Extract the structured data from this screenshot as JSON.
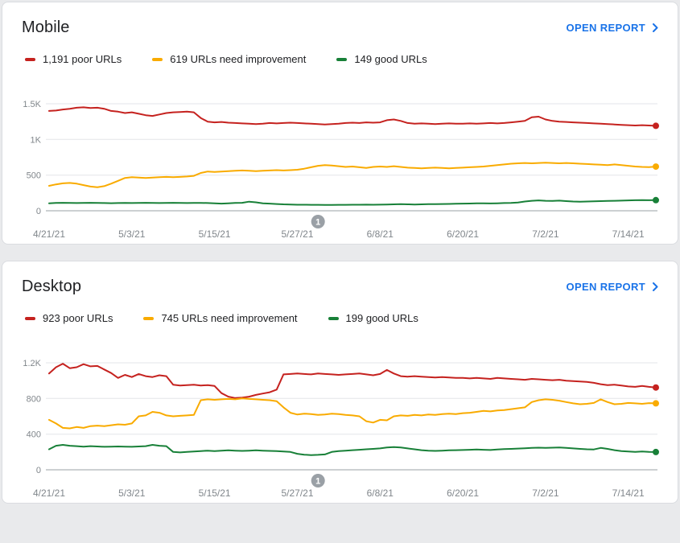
{
  "colors": {
    "accent": "#1a73e8",
    "axis_text": "#80868b",
    "gridline": "#e3e5e8",
    "baseline": "#9aa0a6",
    "annotation": "#9aa0a6",
    "poor": "#c5221f",
    "need_improvement": "#f9ab00",
    "good": "#188038"
  },
  "cards": [
    {
      "title": "Mobile",
      "open_report_label": "OPEN REPORT",
      "legend": [
        {
          "key": "poor",
          "label": "1,191 poor URLs",
          "color": "#c5221f"
        },
        {
          "key": "need-improvement",
          "label": "619 URLs need improvement",
          "color": "#f9ab00"
        },
        {
          "key": "good",
          "label": "149 good URLs",
          "color": "#188038"
        }
      ]
    },
    {
      "title": "Desktop",
      "open_report_label": "OPEN REPORT",
      "legend": [
        {
          "key": "poor",
          "label": "923 poor URLs",
          "color": "#c5221f"
        },
        {
          "key": "need-improvement",
          "label": "745 URLs need improvement",
          "color": "#f9ab00"
        },
        {
          "key": "good",
          "label": "199 good URLs",
          "color": "#188038"
        }
      ]
    }
  ],
  "chart_data": [
    {
      "type": "line",
      "title": "Mobile",
      "legend_position": "top",
      "grid": true,
      "x_tick_labels": [
        "4/21/21",
        "5/3/21",
        "5/15/21",
        "5/27/21",
        "6/8/21",
        "6/20/21",
        "7/2/21",
        "7/14/21"
      ],
      "x_tick_days": [
        0,
        12,
        24,
        36,
        48,
        60,
        72,
        84
      ],
      "x_range": [
        0,
        88
      ],
      "y_ticks": [
        0,
        500,
        1000,
        1500
      ],
      "y_tick_labels": [
        "0",
        "500",
        "1K",
        "1.5K"
      ],
      "ylim": [
        0,
        1600
      ],
      "annotation": {
        "label": "1",
        "x_day": 39
      },
      "series": [
        {
          "key": "poor",
          "name": "poor URLs",
          "color": "#c5221f",
          "current": 1191,
          "values": [
            1400,
            1405,
            1420,
            1430,
            1445,
            1450,
            1440,
            1445,
            1430,
            1400,
            1390,
            1370,
            1380,
            1360,
            1340,
            1330,
            1350,
            1370,
            1380,
            1385,
            1390,
            1380,
            1300,
            1250,
            1240,
            1245,
            1235,
            1230,
            1225,
            1220,
            1215,
            1220,
            1230,
            1225,
            1230,
            1235,
            1230,
            1225,
            1220,
            1215,
            1210,
            1215,
            1220,
            1230,
            1235,
            1230,
            1240,
            1235,
            1240,
            1270,
            1280,
            1260,
            1230,
            1220,
            1225,
            1220,
            1215,
            1220,
            1225,
            1220,
            1220,
            1225,
            1220,
            1225,
            1230,
            1225,
            1230,
            1240,
            1250,
            1260,
            1310,
            1320,
            1280,
            1260,
            1250,
            1245,
            1240,
            1235,
            1230,
            1225,
            1220,
            1215,
            1210,
            1205,
            1200,
            1195,
            1200,
            1195,
            1191
          ]
        },
        {
          "key": "need-improvement",
          "name": "URLs need improvement",
          "color": "#f9ab00",
          "current": 619,
          "values": [
            350,
            370,
            385,
            390,
            380,
            360,
            340,
            330,
            345,
            380,
            420,
            460,
            470,
            465,
            460,
            465,
            470,
            475,
            470,
            475,
            480,
            490,
            530,
            550,
            545,
            550,
            555,
            560,
            565,
            560,
            555,
            560,
            565,
            570,
            565,
            570,
            575,
            590,
            610,
            630,
            640,
            635,
            625,
            615,
            620,
            610,
            600,
            615,
            620,
            615,
            625,
            615,
            605,
            600,
            595,
            600,
            605,
            600,
            595,
            600,
            605,
            610,
            615,
            620,
            630,
            640,
            650,
            660,
            665,
            670,
            665,
            670,
            675,
            670,
            665,
            670,
            665,
            660,
            655,
            650,
            645,
            640,
            650,
            640,
            630,
            620,
            615,
            612,
            619
          ]
        },
        {
          "key": "good",
          "name": "good URLs",
          "color": "#188038",
          "current": 149,
          "values": [
            105,
            110,
            112,
            110,
            108,
            110,
            112,
            110,
            108,
            106,
            108,
            110,
            108,
            110,
            112,
            110,
            108,
            110,
            112,
            110,
            108,
            110,
            110,
            108,
            105,
            100,
            105,
            110,
            112,
            128,
            118,
            105,
            100,
            95,
            90,
            88,
            85,
            85,
            84,
            83,
            82,
            82,
            83,
            84,
            85,
            85,
            86,
            85,
            86,
            88,
            90,
            92,
            90,
            88,
            90,
            92,
            94,
            95,
            96,
            98,
            100,
            102,
            104,
            105,
            103,
            105,
            108,
            110,
            115,
            130,
            140,
            145,
            140,
            138,
            142,
            135,
            130,
            128,
            130,
            132,
            135,
            138,
            140,
            142,
            145,
            148,
            150,
            148,
            149
          ]
        }
      ]
    },
    {
      "type": "line",
      "title": "Desktop",
      "legend_position": "top",
      "grid": true,
      "x_tick_labels": [
        "4/21/21",
        "5/3/21",
        "5/15/21",
        "5/27/21",
        "6/8/21",
        "6/20/21",
        "7/2/21",
        "7/14/21"
      ],
      "x_tick_days": [
        0,
        12,
        24,
        36,
        48,
        60,
        72,
        84
      ],
      "x_range": [
        0,
        88
      ],
      "y_ticks": [
        0,
        400,
        800,
        1200
      ],
      "y_tick_labels": [
        "0",
        "400",
        "800",
        "1.2K"
      ],
      "ylim": [
        0,
        1280
      ],
      "annotation": {
        "label": "1",
        "x_day": 39
      },
      "series": [
        {
          "key": "poor",
          "name": "poor URLs",
          "color": "#c5221f",
          "current": 923,
          "values": [
            1080,
            1150,
            1190,
            1140,
            1150,
            1185,
            1160,
            1165,
            1125,
            1085,
            1030,
            1065,
            1040,
            1075,
            1050,
            1040,
            1060,
            1050,
            955,
            945,
            950,
            955,
            945,
            950,
            940,
            860,
            820,
            805,
            810,
            820,
            840,
            855,
            870,
            900,
            1070,
            1075,
            1080,
            1075,
            1070,
            1080,
            1075,
            1070,
            1065,
            1070,
            1075,
            1080,
            1070,
            1060,
            1075,
            1120,
            1080,
            1050,
            1045,
            1050,
            1045,
            1040,
            1035,
            1040,
            1035,
            1030,
            1030,
            1025,
            1030,
            1025,
            1020,
            1030,
            1025,
            1020,
            1015,
            1010,
            1020,
            1015,
            1010,
            1005,
            1010,
            1000,
            995,
            990,
            985,
            975,
            960,
            950,
            955,
            945,
            935,
            930,
            940,
            930,
            923
          ]
        },
        {
          "key": "need-improvement",
          "name": "URLs need improvement",
          "color": "#f9ab00",
          "current": 745,
          "values": [
            560,
            520,
            470,
            465,
            480,
            470,
            490,
            495,
            490,
            500,
            510,
            505,
            520,
            600,
            610,
            650,
            640,
            610,
            600,
            605,
            610,
            615,
            780,
            790,
            785,
            790,
            795,
            790,
            800,
            795,
            790,
            785,
            780,
            770,
            700,
            640,
            620,
            630,
            625,
            615,
            620,
            630,
            625,
            615,
            610,
            600,
            545,
            530,
            560,
            555,
            600,
            610,
            605,
            615,
            610,
            620,
            615,
            625,
            630,
            625,
            635,
            640,
            650,
            660,
            655,
            665,
            670,
            680,
            690,
            700,
            760,
            780,
            790,
            785,
            775,
            760,
            745,
            735,
            740,
            750,
            790,
            760,
            735,
            740,
            750,
            745,
            740,
            748,
            745
          ]
        },
        {
          "key": "good",
          "name": "good URLs",
          "color": "#188038",
          "current": 199,
          "values": [
            230,
            270,
            280,
            270,
            265,
            260,
            265,
            262,
            258,
            260,
            262,
            260,
            258,
            262,
            265,
            280,
            270,
            265,
            200,
            195,
            200,
            205,
            210,
            215,
            210,
            215,
            218,
            215,
            212,
            215,
            218,
            215,
            212,
            210,
            205,
            200,
            180,
            170,
            165,
            168,
            172,
            200,
            210,
            215,
            220,
            225,
            230,
            235,
            240,
            250,
            255,
            250,
            240,
            230,
            220,
            215,
            212,
            215,
            218,
            220,
            222,
            225,
            228,
            225,
            222,
            228,
            232,
            235,
            238,
            242,
            245,
            248,
            245,
            248,
            250,
            245,
            240,
            235,
            230,
            228,
            245,
            235,
            220,
            210,
            205,
            200,
            205,
            200,
            199
          ]
        }
      ]
    }
  ]
}
